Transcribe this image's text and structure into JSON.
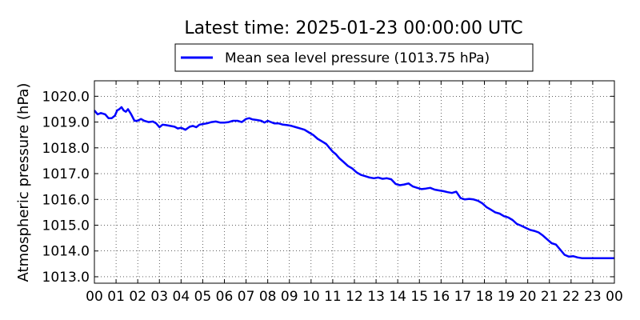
{
  "chart_data": {
    "type": "line",
    "title": "Latest time: 2025-01-23 00:00:00 UTC",
    "xlabel": "",
    "ylabel": "Atmospheric pressure (hPa)",
    "x_tick_labels": [
      "00",
      "01",
      "02",
      "03",
      "04",
      "05",
      "06",
      "07",
      "08",
      "09",
      "10",
      "11",
      "12",
      "13",
      "14",
      "15",
      "16",
      "17",
      "18",
      "19",
      "20",
      "21",
      "22",
      "23",
      "00"
    ],
    "y_tick_labels": [
      "1013.0",
      "1014.0",
      "1015.0",
      "1016.0",
      "1017.0",
      "1018.0",
      "1019.0",
      "1020.0"
    ],
    "xlim": [
      0,
      24
    ],
    "ylim": [
      1012.75,
      1020.6
    ],
    "grid": true,
    "legend_position": "top",
    "series": [
      {
        "name": "Mean sea level pressure (1013.75 hPa)",
        "color": "#0000ff",
        "x": [
          0,
          0.15,
          0.3,
          0.5,
          0.65,
          0.8,
          0.95,
          1.05,
          1.15,
          1.25,
          1.35,
          1.45,
          1.55,
          1.7,
          1.85,
          2.0,
          2.15,
          2.3,
          2.5,
          2.7,
          2.85,
          3.0,
          3.15,
          3.3,
          3.5,
          3.7,
          3.85,
          4.0,
          4.2,
          4.4,
          4.55,
          4.7,
          4.85,
          5.0,
          5.2,
          5.4,
          5.6,
          5.8,
          6.0,
          6.2,
          6.4,
          6.6,
          6.8,
          7.0,
          7.15,
          7.3,
          7.5,
          7.7,
          7.85,
          8.0,
          8.15,
          8.3,
          8.5,
          8.7,
          8.9,
          9.1,
          9.3,
          9.5,
          9.7,
          9.9,
          10.1,
          10.3,
          10.5,
          10.7,
          10.9,
          11.0,
          11.15,
          11.3,
          11.5,
          11.7,
          11.9,
          12.1,
          12.3,
          12.5,
          12.7,
          12.9,
          13.1,
          13.3,
          13.5,
          13.7,
          13.9,
          14.1,
          14.3,
          14.5,
          14.7,
          14.9,
          15.1,
          15.3,
          15.5,
          15.7,
          15.9,
          16.1,
          16.3,
          16.5,
          16.7,
          16.9,
          17.1,
          17.3,
          17.5,
          17.7,
          17.9,
          18.1,
          18.3,
          18.5,
          18.7,
          18.9,
          19.1,
          19.3,
          19.5,
          19.7,
          19.9,
          20.1,
          20.3,
          20.5,
          20.7,
          20.9,
          21.1,
          21.3,
          21.5,
          21.7,
          21.9,
          22.1,
          22.3,
          22.5,
          22.7,
          22.9,
          23.1,
          23.3,
          23.5,
          23.7,
          23.9,
          24.0
        ],
        "y": [
          1019.45,
          1019.3,
          1019.35,
          1019.3,
          1019.15,
          1019.15,
          1019.25,
          1019.45,
          1019.5,
          1019.58,
          1019.45,
          1019.4,
          1019.5,
          1019.3,
          1019.05,
          1019.05,
          1019.12,
          1019.05,
          1019.0,
          1019.02,
          1018.95,
          1018.8,
          1018.9,
          1018.88,
          1018.85,
          1018.82,
          1018.75,
          1018.78,
          1018.7,
          1018.82,
          1018.85,
          1018.8,
          1018.9,
          1018.92,
          1018.95,
          1019.0,
          1019.02,
          1018.98,
          1018.98,
          1019.0,
          1019.05,
          1019.05,
          1019.0,
          1019.12,
          1019.15,
          1019.1,
          1019.08,
          1019.05,
          1018.98,
          1019.05,
          1019.0,
          1018.95,
          1018.95,
          1018.9,
          1018.88,
          1018.85,
          1018.8,
          1018.75,
          1018.7,
          1018.6,
          1018.5,
          1018.35,
          1018.25,
          1018.15,
          1017.95,
          1017.85,
          1017.75,
          1017.6,
          1017.45,
          1017.3,
          1017.2,
          1017.05,
          1016.95,
          1016.9,
          1016.85,
          1016.82,
          1016.85,
          1016.8,
          1016.82,
          1016.78,
          1016.6,
          1016.55,
          1016.58,
          1016.62,
          1016.5,
          1016.45,
          1016.4,
          1016.42,
          1016.45,
          1016.38,
          1016.35,
          1016.32,
          1016.28,
          1016.25,
          1016.3,
          1016.05,
          1016.0,
          1016.02,
          1016.0,
          1015.95,
          1015.85,
          1015.7,
          1015.6,
          1015.5,
          1015.45,
          1015.35,
          1015.3,
          1015.2,
          1015.05,
          1014.98,
          1014.9,
          1014.82,
          1014.78,
          1014.72,
          1014.6,
          1014.45,
          1014.3,
          1014.25,
          1014.05,
          1013.85,
          1013.78,
          1013.8,
          1013.75,
          1013.72,
          1013.72,
          1013.72,
          1013.72,
          1013.72,
          1013.72,
          1013.72,
          1013.72,
          1013.72
        ]
      }
    ]
  }
}
